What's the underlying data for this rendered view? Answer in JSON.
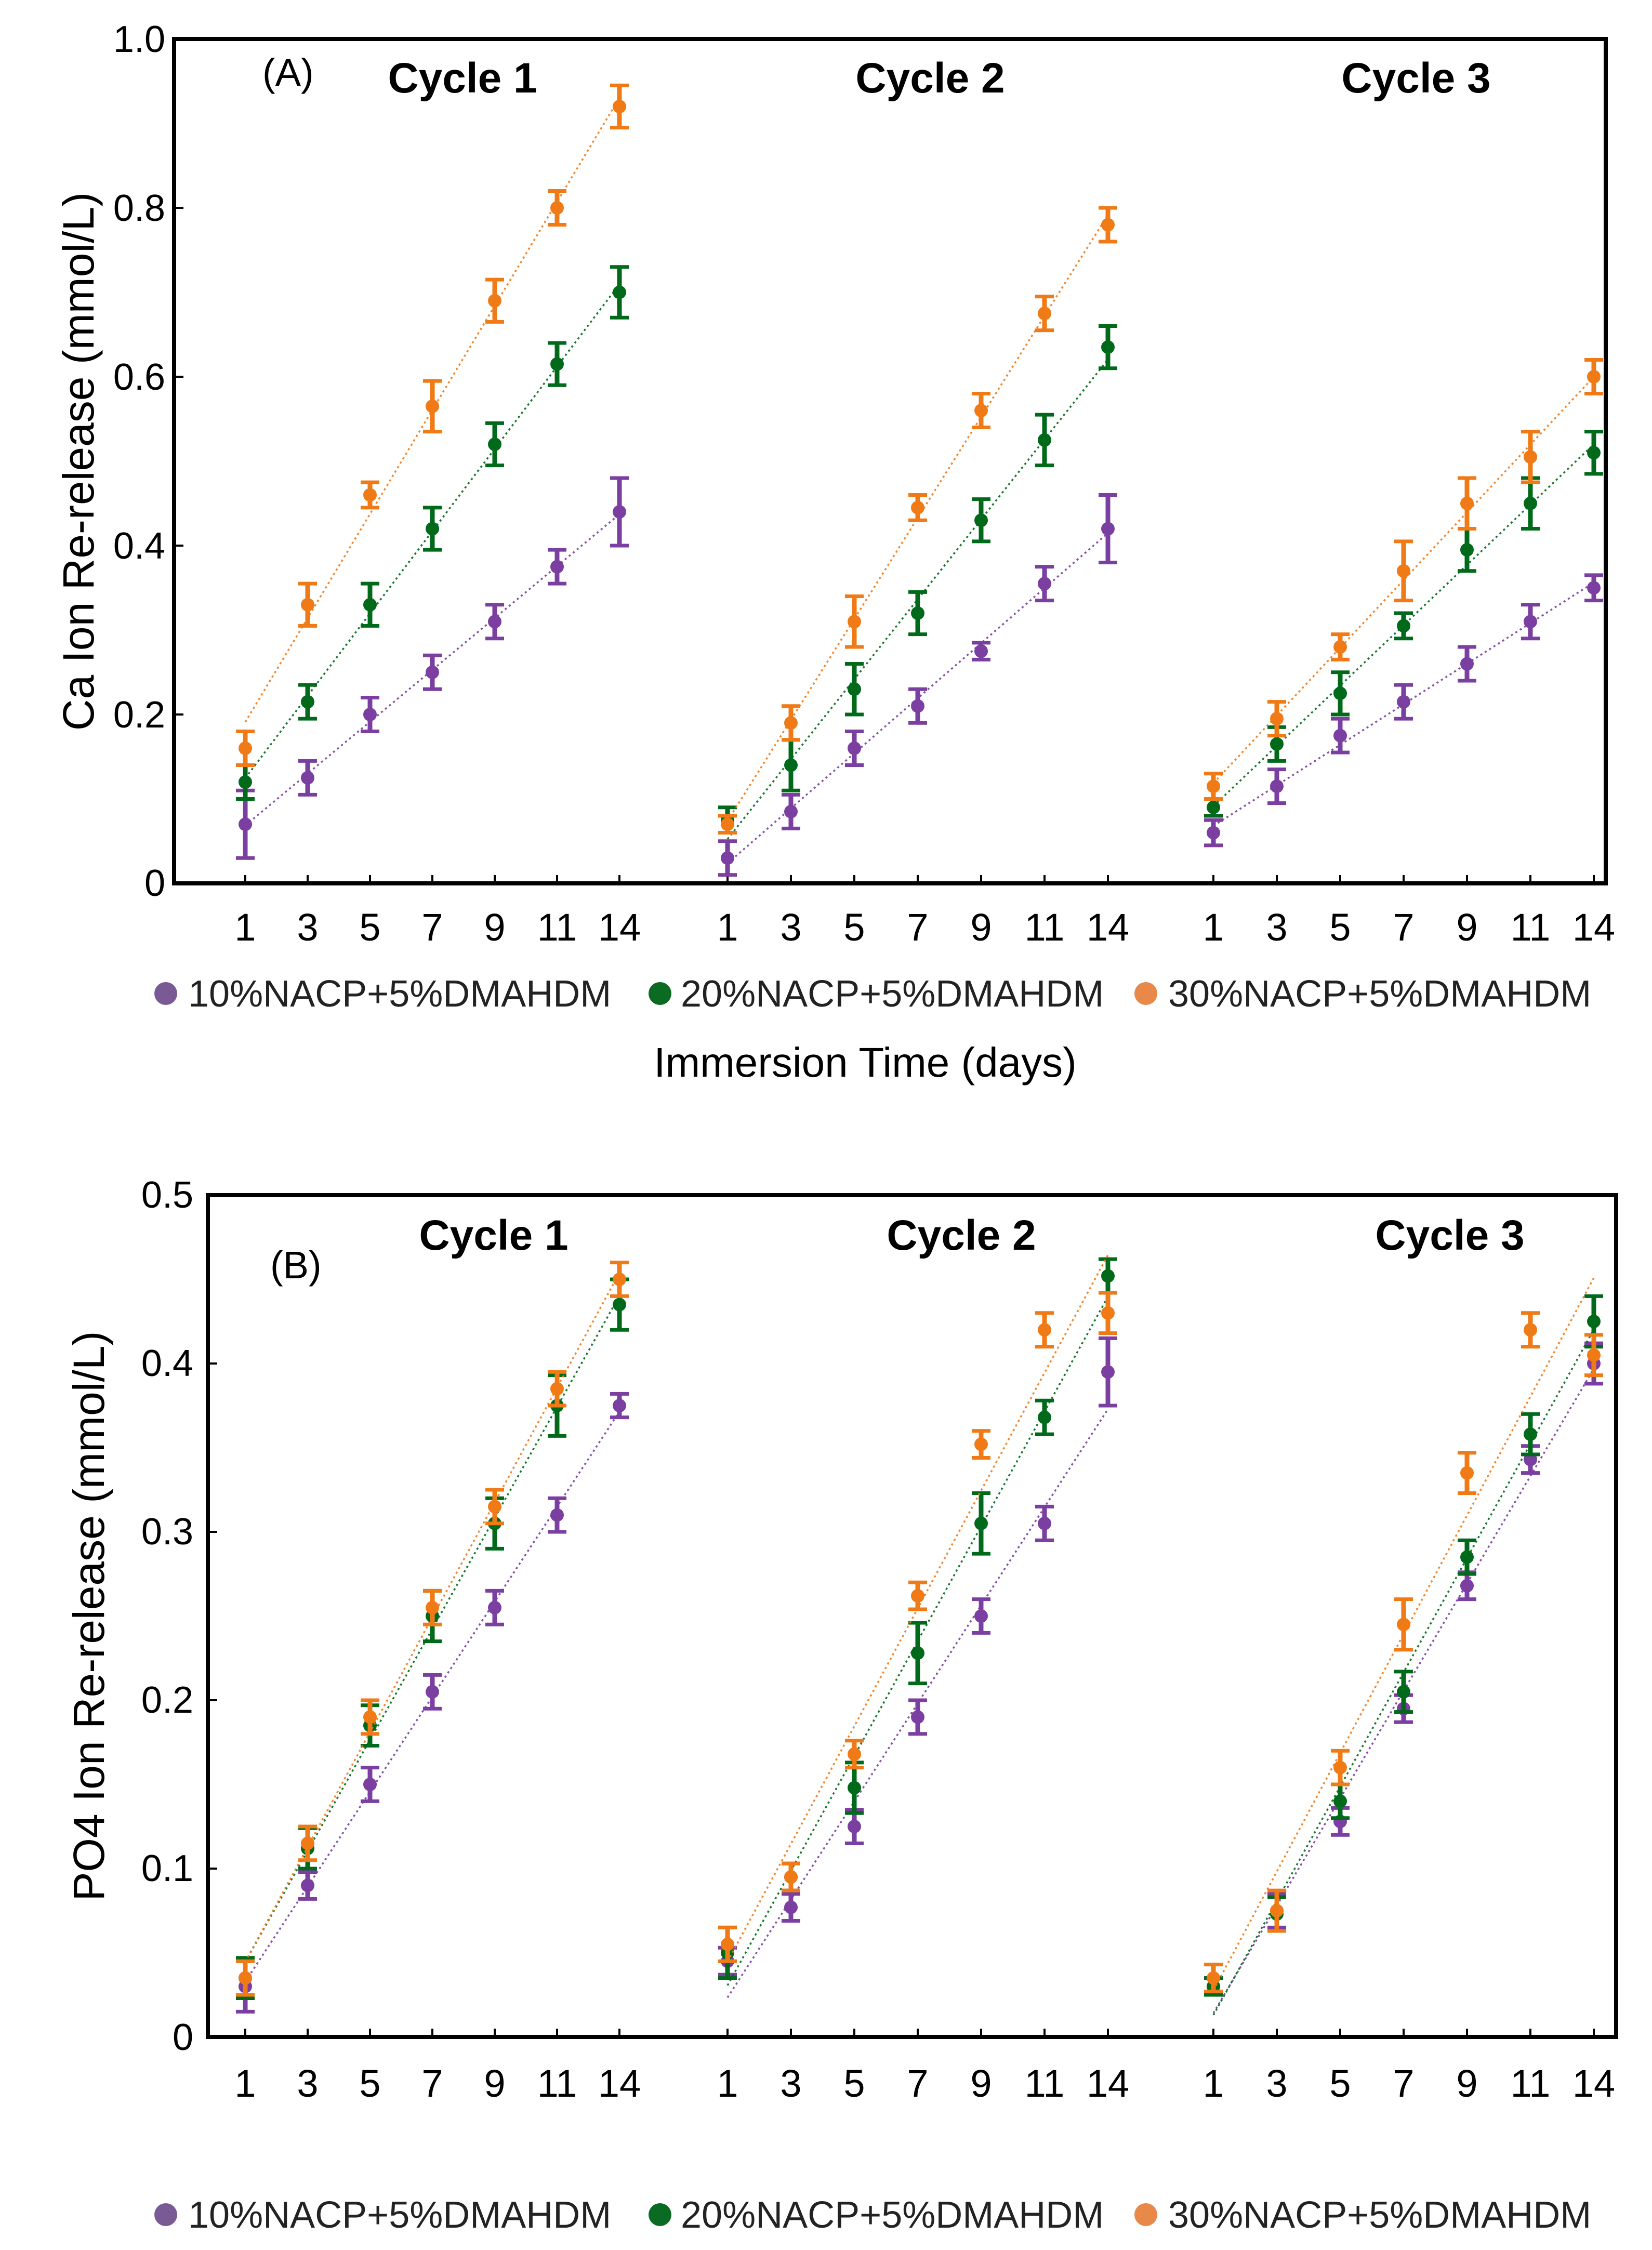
{
  "chart_data": [
    {
      "type": "scatter",
      "panel_label": "(A)",
      "ylabel": "Ca Ion Re-release (mmol/L)",
      "xlabel": "Immersion Time (days)",
      "ylim": [
        0,
        1.0
      ],
      "yticks": [
        0,
        0.2,
        0.4,
        0.6,
        0.8,
        1.0
      ],
      "ytick_labels": [
        "0",
        "0.2",
        "0.4",
        "0.6",
        "0.8",
        "1.0"
      ],
      "cycles": [
        {
          "name": "Cycle 1",
          "x_labels": [
            "1",
            "3",
            "5",
            "7",
            "9",
            "11",
            "14"
          ],
          "series": [
            {
              "name": "10%NACP+5%DMAHDM",
              "values": [
                0.07,
                0.125,
                0.2,
                0.25,
                0.31,
                0.375,
                0.44
              ],
              "errors": [
                0.04,
                0.02,
                0.02,
                0.02,
                0.02,
                0.02,
                0.04
              ]
            },
            {
              "name": "20%NACP+5%DMAHDM",
              "values": [
                0.12,
                0.215,
                0.33,
                0.42,
                0.52,
                0.615,
                0.7
              ],
              "errors": [
                0.02,
                0.02,
                0.025,
                0.025,
                0.025,
                0.025,
                0.03
              ]
            },
            {
              "name": "30%NACP+5%DMAHDM",
              "values": [
                0.16,
                0.33,
                0.46,
                0.565,
                0.69,
                0.8,
                0.92
              ],
              "errors": [
                0.02,
                0.025,
                0.015,
                0.03,
                0.025,
                0.02,
                0.025
              ]
            }
          ]
        },
        {
          "name": "Cycle 2",
          "x_labels": [
            "1",
            "3",
            "5",
            "7",
            "9",
            "11",
            "14"
          ],
          "series": [
            {
              "name": "10%NACP+5%DMAHDM",
              "values": [
                0.03,
                0.085,
                0.16,
                0.21,
                0.275,
                0.355,
                0.42
              ],
              "errors": [
                0.02,
                0.02,
                0.02,
                0.02,
                0.01,
                0.02,
                0.04
              ]
            },
            {
              "name": "20%NACP+5%DMAHDM",
              "values": [
                0.075,
                0.14,
                0.23,
                0.32,
                0.43,
                0.525,
                0.635
              ],
              "errors": [
                0.015,
                0.03,
                0.03,
                0.025,
                0.025,
                0.03,
                0.025
              ]
            },
            {
              "name": "30%NACP+5%DMAHDM",
              "values": [
                0.07,
                0.19,
                0.31,
                0.445,
                0.56,
                0.675,
                0.78
              ],
              "errors": [
                0.01,
                0.02,
                0.03,
                0.015,
                0.02,
                0.02,
                0.02
              ]
            }
          ]
        },
        {
          "name": "Cycle 3",
          "x_labels": [
            "1",
            "3",
            "5",
            "7",
            "9",
            "11",
            "14"
          ],
          "series": [
            {
              "name": "10%NACP+5%DMAHDM",
              "values": [
                0.06,
                0.115,
                0.175,
                0.215,
                0.26,
                0.31,
                0.35
              ],
              "errors": [
                0.015,
                0.02,
                0.02,
                0.02,
                0.02,
                0.02,
                0.015
              ]
            },
            {
              "name": "20%NACP+5%DMAHDM",
              "values": [
                0.09,
                0.165,
                0.225,
                0.305,
                0.395,
                0.45,
                0.51
              ],
              "errors": [
                0.01,
                0.02,
                0.025,
                0.015,
                0.025,
                0.03,
                0.025
              ]
            },
            {
              "name": "30%NACP+5%DMAHDM",
              "values": [
                0.115,
                0.195,
                0.28,
                0.37,
                0.45,
                0.505,
                0.6
              ],
              "errors": [
                0.015,
                0.02,
                0.015,
                0.035,
                0.03,
                0.03,
                0.02
              ]
            }
          ]
        }
      ]
    },
    {
      "type": "scatter",
      "panel_label": "(B)",
      "ylabel": "PO4 Ion Re-release (mmol/L)",
      "xlabel": "",
      "ylim": [
        0,
        0.5
      ],
      "yticks": [
        0,
        0.1,
        0.2,
        0.3,
        0.4,
        0.5
      ],
      "ytick_labels": [
        "0",
        "0.1",
        "0.2",
        "0.3",
        "0.4",
        "0.5"
      ],
      "cycles": [
        {
          "name": "Cycle 1",
          "x_labels": [
            "1",
            "3",
            "5",
            "7",
            "9",
            "11",
            "14"
          ],
          "series": [
            {
              "name": "10%NACP+5%DMAHDM",
              "values": [
                0.03,
                0.09,
                0.15,
                0.205,
                0.255,
                0.31,
                0.375
              ],
              "errors": [
                0.015,
                0.008,
                0.01,
                0.01,
                0.01,
                0.01,
                0.007
              ]
            },
            {
              "name": "20%NACP+5%DMAHDM",
              "values": [
                0.035,
                0.112,
                0.185,
                0.25,
                0.305,
                0.375,
                0.435
              ],
              "errors": [
                0.012,
                0.012,
                0.012,
                0.015,
                0.015,
                0.018,
                0.015
              ]
            },
            {
              "name": "30%NACP+5%DMAHDM",
              "values": [
                0.035,
                0.115,
                0.19,
                0.255,
                0.315,
                0.385,
                0.45
              ],
              "errors": [
                0.01,
                0.01,
                0.01,
                0.01,
                0.01,
                0.01,
                0.01
              ]
            }
          ]
        },
        {
          "name": "Cycle 2",
          "x_labels": [
            "1",
            "3",
            "5",
            "7",
            "9",
            "11",
            "14"
          ],
          "series": [
            {
              "name": "10%NACP+5%DMAHDM",
              "values": [
                0.045,
                0.077,
                0.125,
                0.19,
                0.25,
                0.305,
                0.395
              ],
              "errors": [
                0.008,
                0.008,
                0.01,
                0.01,
                0.01,
                0.01,
                0.02
              ]
            },
            {
              "name": "20%NACP+5%DMAHDM",
              "values": [
                0.05,
                0.095,
                0.148,
                0.228,
                0.305,
                0.368,
                0.452
              ],
              "errors": [
                0.015,
                0.008,
                0.015,
                0.018,
                0.018,
                0.01,
                0.01
              ]
            },
            {
              "name": "30%NACP+5%DMAHDM",
              "values": [
                0.055,
                0.095,
                0.168,
                0.262,
                0.352,
                0.42,
                0.43
              ],
              "errors": [
                0.01,
                0.008,
                0.008,
                0.008,
                0.008,
                0.01,
                0.012
              ]
            }
          ]
        },
        {
          "name": "Cycle 3",
          "x_labels": [
            "1",
            "3",
            "5",
            "7",
            "9",
            "11",
            "14"
          ],
          "series": [
            {
              "name": "10%NACP+5%DMAHDM",
              "values": [
                0.03,
                0.075,
                0.128,
                0.195,
                0.268,
                0.343,
                0.4
              ],
              "errors": [
                0.005,
                0.01,
                0.008,
                0.008,
                0.008,
                0.008,
                0.012
              ]
            },
            {
              "name": "20%NACP+5%DMAHDM",
              "values": [
                0.03,
                0.073,
                0.14,
                0.205,
                0.285,
                0.358,
                0.425
              ],
              "errors": [
                0.005,
                0.01,
                0.01,
                0.012,
                0.01,
                0.012,
                0.015
              ]
            },
            {
              "name": "30%NACP+5%DMAHDM",
              "values": [
                0.035,
                0.075,
                0.16,
                0.245,
                0.335,
                0.42,
                0.405
              ],
              "errors": [
                0.008,
                0.012,
                0.01,
                0.015,
                0.012,
                0.01,
                0.012
              ]
            }
          ]
        }
      ]
    }
  ],
  "legend": [
    {
      "label": "10%NACP+5%DMAHDM",
      "color": "#7a3fa0"
    },
    {
      "label": "20%NACP+5%DMAHDM",
      "color": "#006a1a"
    },
    {
      "label": "30%NACP+5%DMAHDM",
      "color": "#f07a16"
    }
  ],
  "legend_marker_colors": [
    "#7a5a94",
    "#0b6b22",
    "#e8894a"
  ]
}
